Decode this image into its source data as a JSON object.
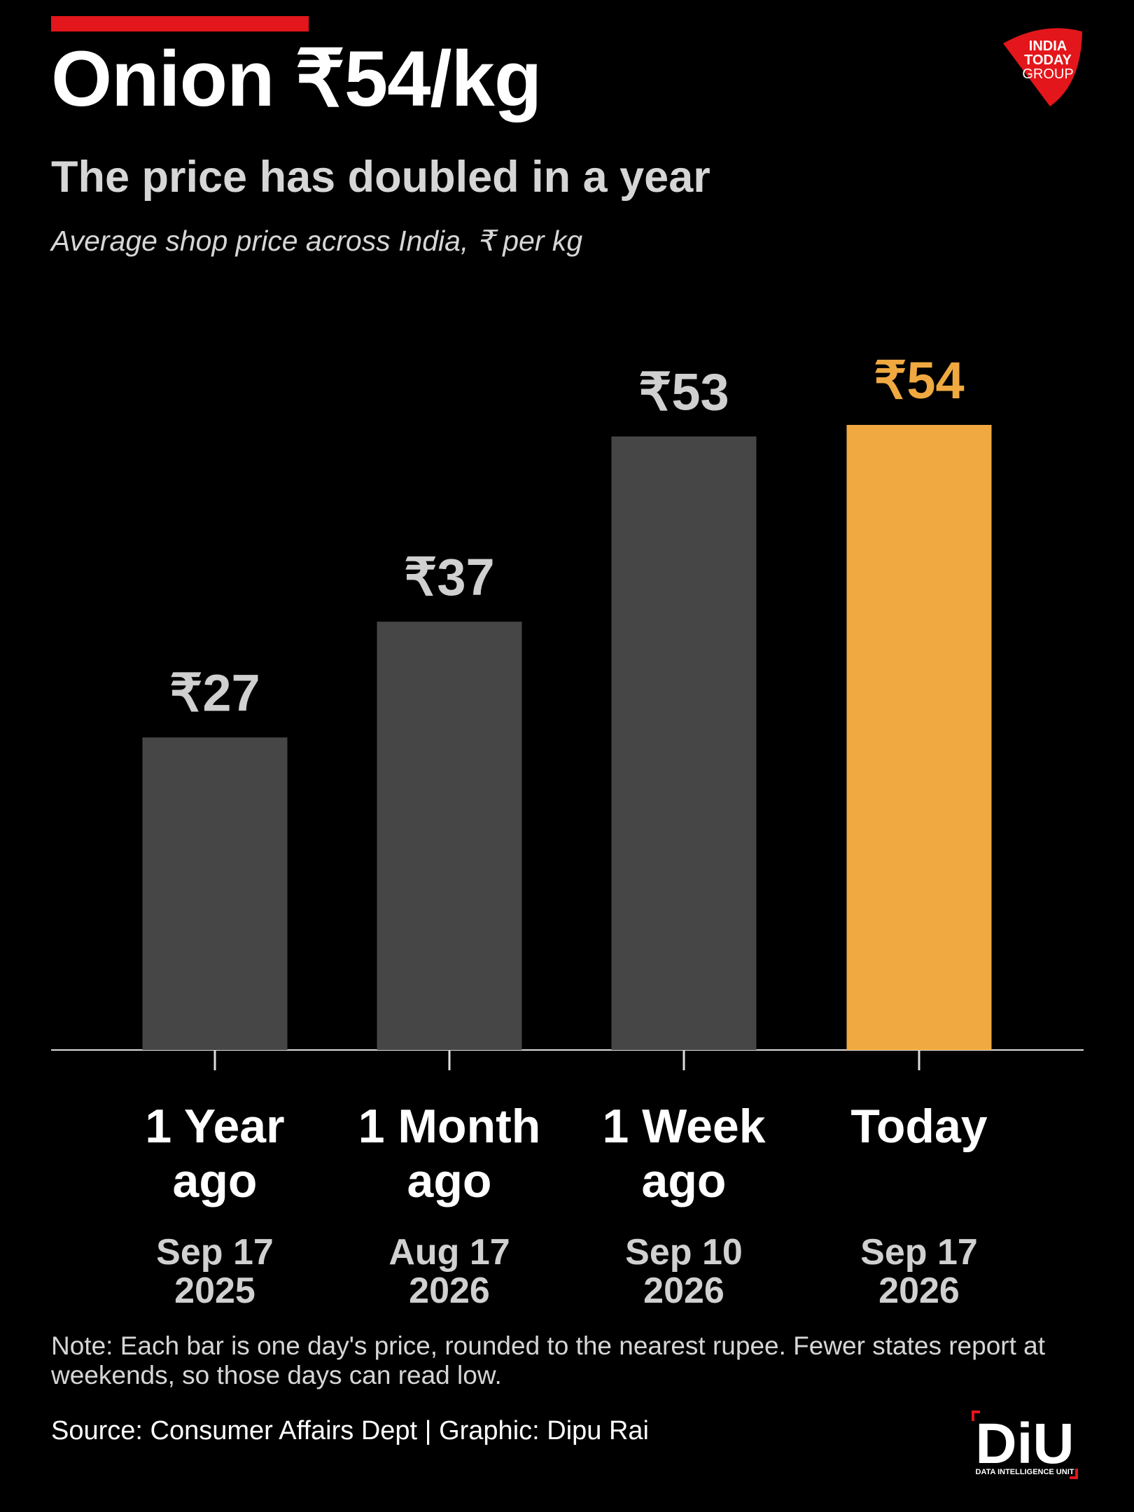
{
  "chart_data": {
    "type": "bar",
    "title": "Onion ₹54/kg",
    "subtitle": "The price has doubled in a year",
    "axis_note": "Average shop price across India, ₹ per kg",
    "categories": [
      "1 Year ago",
      "1 Month ago",
      "1 Week ago",
      "Today"
    ],
    "dates": [
      "Sep 17 2025",
      "Aug 17 2026",
      "Sep 10 2026",
      "Sep 17 2026"
    ],
    "values": [
      27,
      37,
      53,
      54
    ],
    "value_labels": [
      "₹27",
      "₹37",
      "₹53",
      "₹54"
    ],
    "colors": [
      "#464646",
      "#464646",
      "#464646",
      "#f0a940"
    ],
    "label_colors": [
      "#d0d0d0",
      "#d0d0d0",
      "#d0d0d0",
      "#f0a940"
    ],
    "note": "Note: Each bar is one day's price, rounded to the nearest rupee. Fewer states report at weekends, so those days can read low.",
    "source": "Source: Consumer Affairs Dept | Graphic: Dipu Rai"
  },
  "logos": {
    "publisher": [
      "INDIA",
      "TODAY",
      "GROUP"
    ],
    "unit": "DiU",
    "unit_name": "DATA INTELLIGENCE UNIT"
  }
}
